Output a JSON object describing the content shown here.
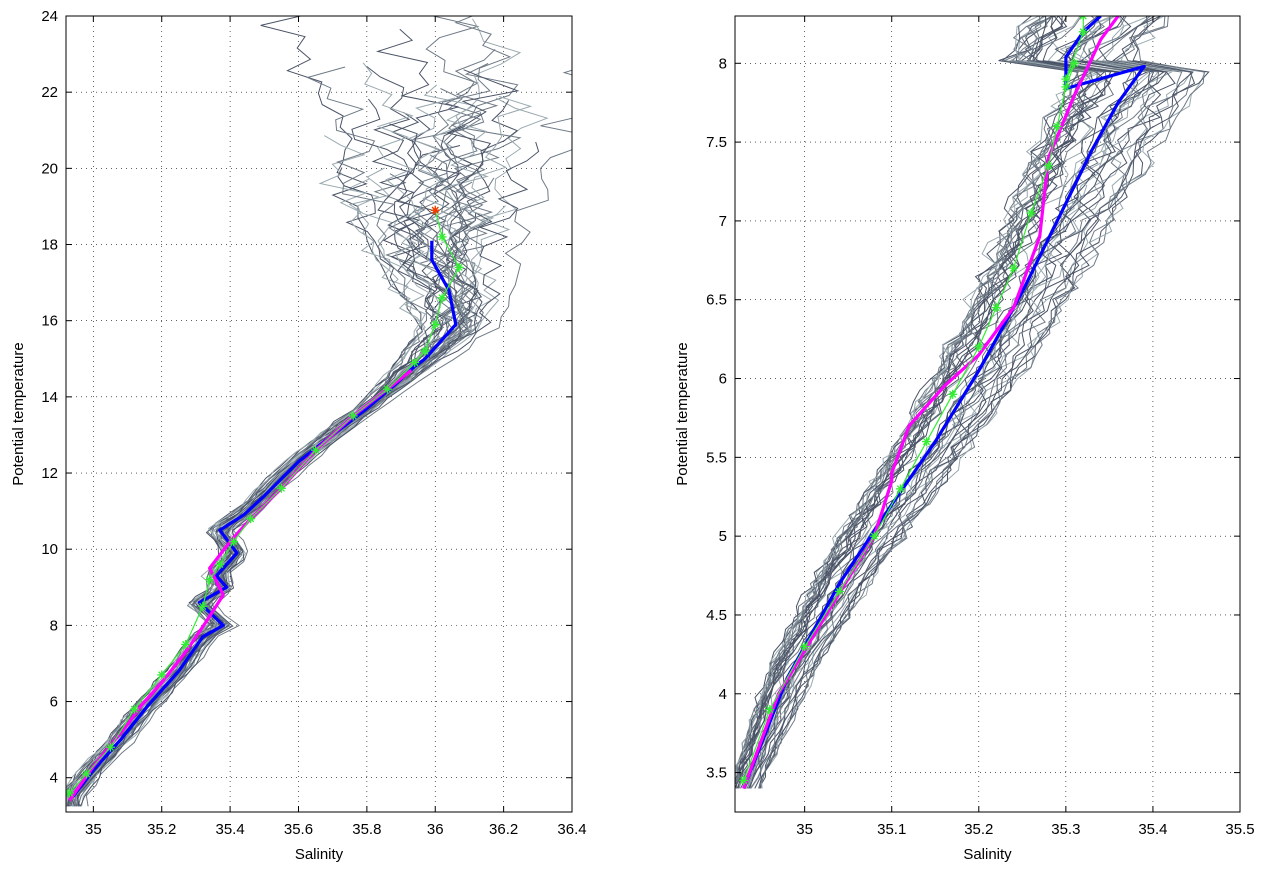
{
  "chart_data": [
    {
      "type": "line",
      "xlabel": "Salinity",
      "ylabel": "Potential temperature",
      "xlim": [
        34.92,
        36.4
      ],
      "ylim": [
        3.1,
        24
      ],
      "xticks": [
        35,
        35.2,
        35.4,
        35.6,
        35.8,
        36,
        36.2,
        36.4
      ],
      "xticklabels": [
        "35",
        "35.2",
        "35.4",
        "35.6",
        "35.8",
        "36",
        "36.2",
        "36.4"
      ],
      "yticks": [
        4,
        6,
        8,
        10,
        12,
        14,
        16,
        18,
        20,
        22,
        24
      ],
      "yticklabels": [
        "4",
        "6",
        "8",
        "10",
        "12",
        "14",
        "16",
        "18",
        "20",
        "22",
        "24"
      ],
      "grid": true,
      "series": [
        {
          "color": "#0000ff",
          "style": "thick",
          "x": [
            34.94,
            35.0,
            35.08,
            35.16,
            35.25,
            35.32,
            35.38,
            35.31,
            35.39,
            35.36,
            35.42,
            35.37,
            35.44,
            35.5,
            35.6,
            35.7,
            35.8,
            35.88,
            35.94,
            35.97,
            36.06,
            36.04,
            35.99,
            35.99
          ],
          "y": [
            3.5,
            4.2,
            5.0,
            5.9,
            6.8,
            7.7,
            8.0,
            8.6,
            9.0,
            9.3,
            9.9,
            10.5,
            10.9,
            11.4,
            12.3,
            13.0,
            13.7,
            14.3,
            14.8,
            15.0,
            15.9,
            16.8,
            17.6,
            18.1
          ]
        },
        {
          "color": "#ff00ff",
          "style": "thick",
          "x": [
            34.93,
            35.0,
            35.1,
            35.14,
            35.2,
            35.27,
            35.33,
            35.38,
            35.34,
            35.4,
            35.46,
            35.55,
            35.65,
            35.76,
            35.86,
            35.93
          ],
          "y": [
            3.4,
            4.3,
            5.4,
            5.9,
            6.5,
            7.3,
            8.1,
            8.8,
            9.5,
            10.2,
            10.8,
            11.6,
            12.6,
            13.5,
            14.2,
            14.7
          ]
        },
        {
          "color": "#33ee33",
          "style": "stars",
          "x": [
            34.93,
            34.98,
            35.05,
            35.12,
            35.2,
            35.27,
            35.32,
            35.34,
            35.37,
            35.41,
            35.46,
            35.55,
            35.65,
            35.76,
            35.86,
            35.94,
            35.97,
            36.0,
            36.02,
            36.07,
            36.02,
            36.0
          ],
          "y": [
            3.6,
            4.1,
            4.8,
            5.8,
            6.7,
            7.5,
            8.5,
            9.2,
            9.6,
            10.2,
            10.8,
            11.6,
            12.6,
            13.5,
            14.2,
            14.9,
            15.2,
            15.9,
            16.6,
            17.4,
            18.2,
            18.9
          ]
        },
        {
          "color": "#ff3300",
          "style": "stars",
          "x": [
            36.0
          ],
          "y": [
            18.9
          ]
        }
      ]
    },
    {
      "type": "line",
      "xlabel": "Salinity",
      "ylabel": "Potential temperature",
      "xlim": [
        34.92,
        35.5
      ],
      "ylim": [
        3.25,
        8.3
      ],
      "xticks": [
        35,
        35.1,
        35.2,
        35.3,
        35.4,
        35.5
      ],
      "xticklabels": [
        "35",
        "35.1",
        "35.2",
        "35.3",
        "35.4",
        "35.5"
      ],
      "yticks": [
        3.5,
        4,
        4.5,
        5,
        5.5,
        6,
        6.5,
        7,
        7.5,
        8
      ],
      "yticklabels": [
        "3.5",
        "4",
        "4.5",
        "5",
        "5.5",
        "6",
        "6.5",
        "7",
        "7.5",
        "8"
      ],
      "grid": true,
      "series": [
        {
          "color": "#0000ff",
          "style": "thick",
          "x": [
            34.93,
            34.98,
            35.04,
            35.1,
            35.15,
            35.2,
            35.25,
            35.29,
            35.33,
            35.36,
            35.39,
            35.3,
            35.3,
            35.32,
            35.34
          ],
          "y": [
            3.4,
            4.1,
            4.7,
            5.2,
            5.6,
            6.05,
            6.55,
            7.0,
            7.45,
            7.75,
            7.98,
            7.84,
            8.04,
            8.2,
            8.3
          ]
        },
        {
          "color": "#ff00ff",
          "style": "thick",
          "x": [
            34.93,
            34.97,
            35.03,
            35.08,
            35.1,
            35.1,
            35.12,
            35.16,
            35.2,
            35.24,
            35.27,
            35.28,
            35.31,
            35.34,
            35.36
          ],
          "y": [
            3.4,
            4.0,
            4.55,
            5.0,
            5.35,
            5.4,
            5.7,
            5.95,
            6.15,
            6.45,
            6.9,
            7.4,
            7.8,
            8.15,
            8.3
          ]
        },
        {
          "color": "#33ee33",
          "style": "stars",
          "x": [
            34.93,
            34.96,
            35.0,
            35.04,
            35.08,
            35.11,
            35.14,
            35.17,
            35.2,
            35.22,
            35.24,
            35.26,
            35.28,
            35.29,
            35.3,
            35.31,
            35.3,
            35.32,
            35.32
          ],
          "y": [
            3.45,
            3.9,
            4.3,
            4.65,
            5.0,
            5.3,
            5.6,
            5.9,
            6.2,
            6.45,
            6.7,
            7.05,
            7.35,
            7.6,
            7.85,
            8.0,
            7.9,
            8.2,
            8.3
          ]
        }
      ]
    }
  ]
}
